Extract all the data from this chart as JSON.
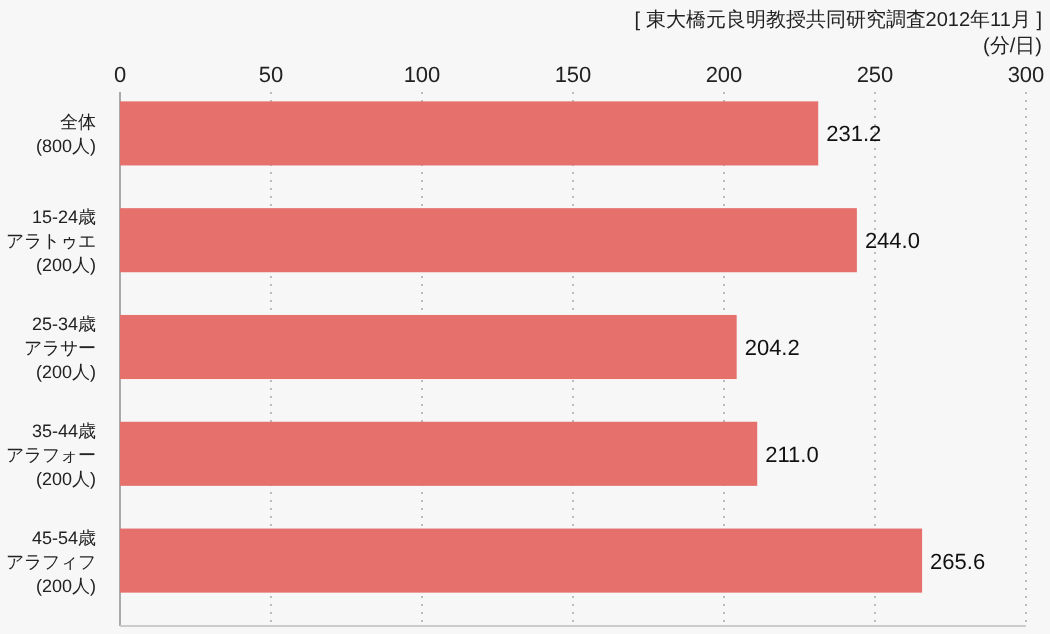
{
  "chart_data": {
    "type": "bar",
    "orientation": "horizontal",
    "annotations": [
      "[ 東大橋元良明教授共同研究調査2012年11月 ]"
    ],
    "xlabel": "(分/日)",
    "categories": [
      "全体(800人)",
      "15-24歳アラトゥエ(200人)",
      "25-34歳アラサー(200人)",
      "35-44歳アラフォー(200人)",
      "45-54歳アラフィフ(200人)"
    ],
    "values": [
      231.2,
      244.0,
      204.2,
      211.0,
      265.6
    ],
    "value_labels": [
      "231.2",
      "244.0",
      "204.2",
      "211.0",
      "265.6"
    ],
    "color": "#e5706c",
    "xlim": [
      0,
      300
    ],
    "xticks": [
      0,
      50,
      100,
      150,
      200,
      250,
      300
    ],
    "grid": "x"
  }
}
